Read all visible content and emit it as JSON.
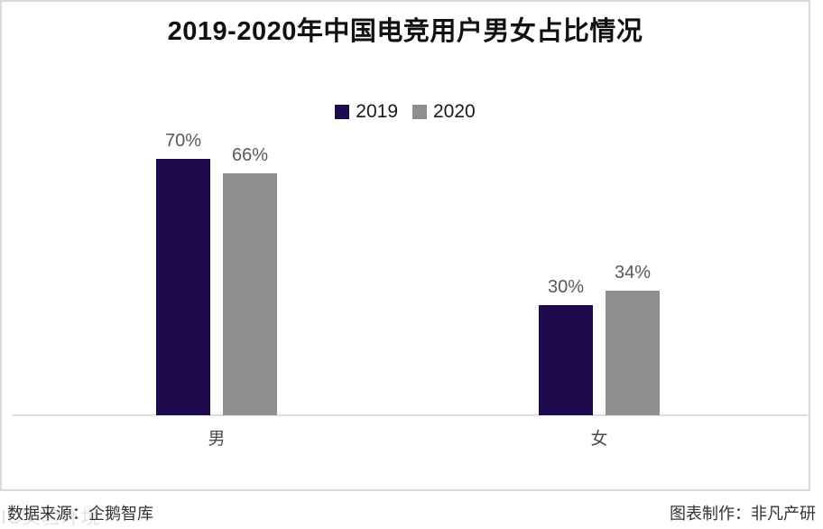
{
  "page": {
    "background": "#ffffff",
    "frame_border_color": "#d9d9d9"
  },
  "header": {
    "title": "2019-2020年中国电竞用户男女占比情况"
  },
  "chart_data": {
    "type": "bar",
    "title": "2019-2020年中国电竞用户男女占比情况",
    "categories": [
      "男",
      "女"
    ],
    "series": [
      {
        "name": "2019",
        "color": "#1f0a4e",
        "values": [
          70,
          30
        ]
      },
      {
        "name": "2020",
        "color": "#8f8f8f",
        "values": [
          66,
          34
        ]
      }
    ],
    "value_suffix": "%",
    "data_labels": [
      "70%",
      "66%",
      "30%",
      "34%"
    ],
    "ylim": [
      0,
      100
    ],
    "grid": false,
    "legend_position": "top-center",
    "axis_color": "#dedede",
    "label_color": "#595959"
  },
  "footer": {
    "source": "数据来源：企鹅智库",
    "credit": "图表制作：非凡产研"
  },
  "watermark": "IC实验环境"
}
